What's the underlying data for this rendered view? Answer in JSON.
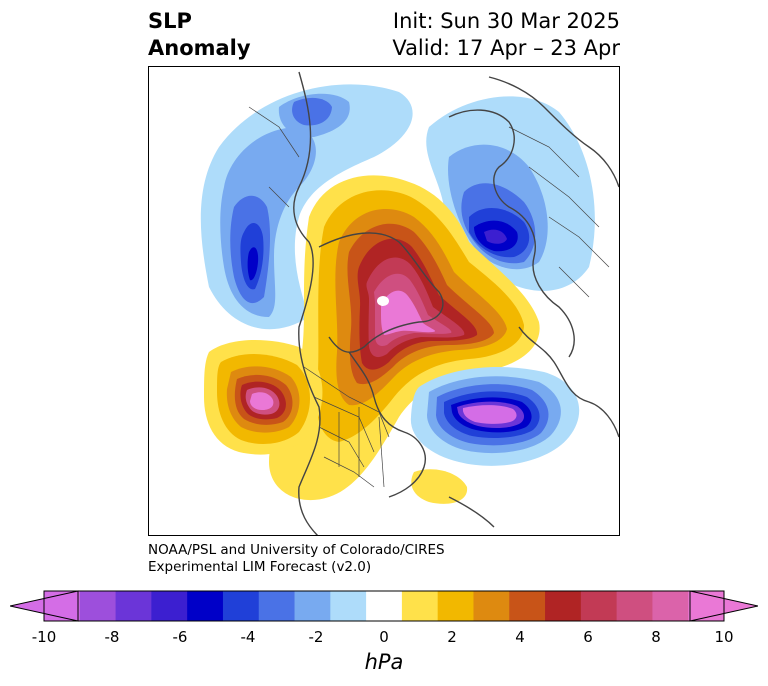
{
  "header": {
    "title_line1": "SLP",
    "title_line2": "Anomaly",
    "init_text": "Init: Sun 30 Mar 2025",
    "valid_text": "Valid: 17 Apr – 23 Apr"
  },
  "credit": {
    "line1": "NOAA/PSL and University of Colorado/CIRES",
    "line2": "Experimental LIM Forecast (v2.0)"
  },
  "colorbar": {
    "unit": "hPa",
    "levels": [
      -10,
      -9,
      -8,
      -7,
      -6,
      -5,
      -4,
      -3,
      -2,
      -1,
      1,
      2,
      3,
      4,
      5,
      6,
      7,
      8,
      9,
      10
    ],
    "tick_labels": [
      "-10",
      "-8",
      "-6",
      "-4",
      "-2",
      "0",
      "2",
      "4",
      "6",
      "8",
      "10"
    ],
    "colors": [
      "#d46de6",
      "#9d4fdc",
      "#6b35d8",
      "#3c1fd0",
      "#0000c8",
      "#2040d8",
      "#4a72e6",
      "#78aaf0",
      "#aedcfa",
      "#ffffff",
      "#ffe14a",
      "#f2b800",
      "#de8a10",
      "#c85418",
      "#b02424",
      "#c23a55",
      "#cf4f80",
      "#db63aa",
      "#ea78d6"
    ],
    "extend": "both"
  },
  "map": {
    "projection": "polar-stereographic-north",
    "features": [
      {
        "name": "arctic-high",
        "sign": "positive",
        "peak_hPa": 10
      },
      {
        "name": "north-pacific-high",
        "sign": "positive",
        "peak_hPa": 10
      },
      {
        "name": "north-atlantic-low",
        "sign": "negative",
        "peak_hPa": -10
      },
      {
        "name": "siberian-low",
        "sign": "negative",
        "peak_hPa": -6
      },
      {
        "name": "central-asia-low",
        "sign": "negative",
        "peak_hPa": -6
      }
    ]
  }
}
